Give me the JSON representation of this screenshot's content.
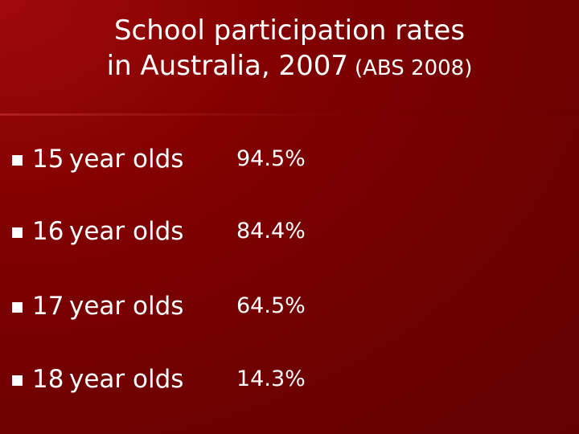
{
  "slide": {
    "title_line1": "School participation rates",
    "title_line2": "in Australia, 2007",
    "title_source": "(ABS 2008)",
    "rows": [
      {
        "age": "15",
        "label": "year olds",
        "value": "94.5%"
      },
      {
        "age": "16",
        "label": "year olds",
        "value": "84.4%"
      },
      {
        "age": "17",
        "label": "year olds",
        "value": "64.5%"
      },
      {
        "age": "18",
        "label": "year olds",
        "value": "14.3%"
      }
    ]
  }
}
